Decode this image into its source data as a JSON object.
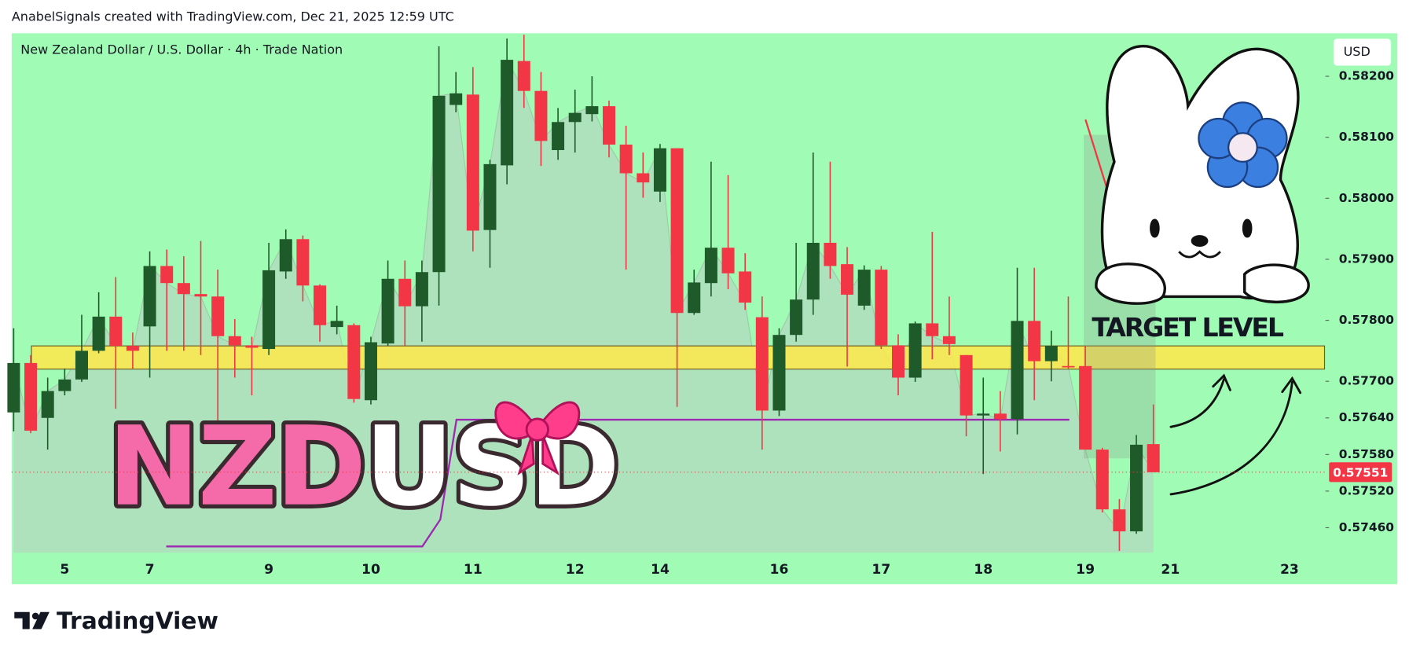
{
  "credit": "AnabelSignals created with TradingView.com, Dec 21, 2025 12:59 UTC",
  "brand": "TradingView",
  "chart_data": {
    "type": "candlestick",
    "title": "New Zealand Dollar / U.S. Dollar · 4h · Trade Nation",
    "currency": "USD",
    "watermark": {
      "left": "NZD",
      "right": "USD"
    },
    "up_color": "#1f5a2a",
    "down_color": "#f23645",
    "background": "#a0fbb4",
    "grid": false,
    "categories": [
      null,
      null,
      null,
      "5",
      null,
      null,
      null,
      null,
      "7",
      null,
      null,
      null,
      null,
      null,
      null,
      "9",
      null,
      null,
      null,
      null,
      null,
      "10",
      null,
      null,
      null,
      null,
      null,
      "11",
      null,
      null,
      null,
      null,
      null,
      "12",
      null,
      null,
      null,
      null,
      "14",
      null,
      null,
      null,
      null,
      null,
      null,
      "16",
      null,
      null,
      null,
      null,
      null,
      "17",
      null,
      null,
      null,
      null,
      null,
      "18",
      null,
      null,
      null,
      null,
      null,
      "19",
      null,
      null,
      null,
      null,
      "21",
      null,
      null,
      null,
      null,
      null,
      null,
      "23",
      null,
      null
    ],
    "open": [
      0.57649,
      0.5773,
      0.5764,
      0.57684,
      0.57703,
      0.5775,
      0.57806,
      0.57758,
      0.5779,
      0.57889,
      0.57861,
      0.57843,
      0.57839,
      0.57774,
      0.57759,
      0.57753,
      0.5788,
      0.57933,
      0.57857,
      0.57789,
      0.57792,
      0.57669,
      0.57762,
      0.57868,
      0.57823,
      0.57879,
      0.58153,
      0.5817,
      0.57948,
      0.58054,
      0.58225,
      0.58176,
      0.58079,
      0.58125,
      0.58138,
      0.58151,
      0.58088,
      0.58041,
      0.58011,
      0.58082,
      0.57812,
      0.57861,
      0.57919,
      0.5788,
      0.57805,
      0.57652,
      0.57776,
      0.57834,
      0.57927,
      0.57892,
      0.57824,
      0.57883,
      0.57759,
      0.57706,
      0.57795,
      0.57774,
      0.57743,
      0.57644,
      0.57647,
      0.57638,
      0.57799,
      0.57733,
      0.57725,
      0.57725,
      0.57588,
      0.5749,
      0.57454,
      0.57597,
      null,
      null,
      null,
      null,
      null,
      null,
      null,
      null,
      null,
      null
    ],
    "high": [
      0.57787,
      0.57743,
      0.57706,
      0.57721,
      0.57809,
      0.57846,
      0.57871,
      0.5778,
      0.57913,
      0.57916,
      0.57905,
      0.5793,
      0.57883,
      0.57802,
      0.57773,
      0.57927,
      0.57949,
      0.57939,
      0.57859,
      0.57824,
      0.57795,
      0.57773,
      0.57898,
      0.57898,
      0.57898,
      0.58249,
      0.58207,
      0.58215,
      0.58063,
      0.58262,
      0.58268,
      0.58207,
      0.58148,
      0.58178,
      0.582,
      0.5816,
      0.58119,
      0.58075,
      0.58089,
      0.58082,
      0.57883,
      0.5806,
      0.58038,
      0.5791,
      0.57839,
      0.57787,
      0.57927,
      0.58075,
      0.5806,
      0.5792,
      0.5789,
      0.57889,
      0.57777,
      0.57798,
      0.57945,
      0.57839,
      0.57743,
      0.57706,
      0.57684,
      0.57886,
      0.57886,
      0.57783,
      0.57839,
      0.57758,
      0.57591,
      0.57507,
      0.57612,
      0.57662,
      null,
      null,
      null,
      null,
      null,
      null,
      null,
      null,
      null,
      null
    ],
    "low": [
      0.57618,
      0.57615,
      0.57588,
      0.57677,
      0.57699,
      0.57746,
      0.57655,
      0.57721,
      0.57706,
      0.5775,
      0.5775,
      0.57743,
      0.57625,
      0.57706,
      0.57677,
      0.57743,
      0.57868,
      0.57831,
      0.57765,
      0.57777,
      0.57665,
      0.57662,
      0.57758,
      0.57758,
      0.57765,
      0.57824,
      0.58141,
      0.57913,
      0.57886,
      0.58023,
      0.58148,
      0.58053,
      0.58063,
      0.58075,
      0.58126,
      0.58067,
      0.57883,
      0.58001,
      0.57994,
      0.57658,
      0.57809,
      0.57839,
      0.57851,
      0.57817,
      0.57588,
      0.57643,
      0.57765,
      0.57809,
      0.57868,
      0.57724,
      0.57817,
      0.57753,
      0.57677,
      0.57699,
      0.57736,
      0.57743,
      0.5761,
      0.57548,
      0.57585,
      0.57613,
      0.57669,
      0.577,
      0.57721,
      0.57588,
      0.57485,
      0.57422,
      0.5745,
      0.57551,
      null,
      null,
      null,
      null,
      null,
      null,
      null,
      null,
      null,
      null
    ],
    "close": [
      0.5773,
      0.57619,
      0.57684,
      0.57703,
      0.5775,
      0.57806,
      0.57758,
      0.5775,
      0.57889,
      0.57861,
      0.57843,
      0.57839,
      0.57774,
      0.57759,
      0.57755,
      0.57882,
      0.57933,
      0.57857,
      0.57792,
      0.57799,
      0.57671,
      0.57764,
      0.57868,
      0.57823,
      0.57879,
      0.58168,
      0.58172,
      0.57947,
      0.58056,
      0.58227,
      0.58176,
      0.58094,
      0.58125,
      0.5814,
      0.58151,
      0.58088,
      0.58041,
      0.58026,
      0.58082,
      0.57812,
      0.57862,
      0.57919,
      0.57877,
      0.57829,
      0.57652,
      0.57776,
      0.57834,
      0.57927,
      0.57889,
      0.57842,
      0.57883,
      0.57759,
      0.57706,
      0.57795,
      0.57774,
      0.57761,
      0.57644,
      0.57647,
      0.57638,
      0.57799,
      0.57733,
      0.57758,
      0.57724,
      0.57588,
      0.5749,
      0.57454,
      0.57596,
      0.57551,
      null,
      null,
      null,
      null,
      null,
      null,
      null,
      null,
      null,
      null
    ],
    "last_price": 0.57551,
    "zones": [
      {
        "top": 0.57758,
        "bottom": 0.5772,
        "label": "TARGET LEVEL",
        "color": "#ffe84a"
      }
    ],
    "ylim": [
      0.57419,
      0.58269
    ],
    "yticks": [
      {
        "value": 0.582,
        "label": "0.58200"
      },
      {
        "value": 0.581,
        "label": "0.58100"
      },
      {
        "value": 0.58,
        "label": "0.58000"
      },
      {
        "value": 0.579,
        "label": "0.57900"
      },
      {
        "value": 0.578,
        "label": "0.57800"
      },
      {
        "value": 0.577,
        "label": "0.57700"
      },
      {
        "value": 0.5764,
        "label": "0.57640"
      },
      {
        "value": 0.5758,
        "label": "0.57580"
      },
      {
        "value": 0.5752,
        "label": "0.57520"
      },
      {
        "value": 0.5746,
        "label": "0.57460"
      }
    ]
  }
}
